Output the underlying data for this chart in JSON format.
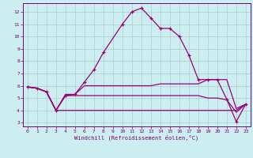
{
  "xlabel": "Windchill (Refroidissement éolien,°C)",
  "bg_color": "#cceef0",
  "grid_color": "#aacccc",
  "line_color": "#990077",
  "xlim": [
    -0.5,
    23.5
  ],
  "ylim": [
    2.7,
    12.7
  ],
  "xticks": [
    0,
    1,
    2,
    3,
    4,
    5,
    6,
    7,
    8,
    9,
    10,
    11,
    12,
    13,
    14,
    15,
    16,
    17,
    18,
    19,
    20,
    21,
    22,
    23
  ],
  "yticks": [
    3,
    4,
    5,
    6,
    7,
    8,
    9,
    10,
    11,
    12
  ],
  "series0": [
    5.9,
    5.8,
    5.5,
    4.0,
    5.2,
    5.3,
    6.3,
    7.3,
    8.7,
    null,
    11.0,
    12.0,
    12.3,
    11.5,
    10.65,
    10.65,
    10.0,
    8.5,
    6.5,
    6.5,
    6.5,
    4.9,
    3.1,
    4.5
  ],
  "series1": [
    5.9,
    5.8,
    5.5,
    4.0,
    5.3,
    5.3,
    6.0,
    6.0,
    6.0,
    6.0,
    6.0,
    6.0,
    6.0,
    6.0,
    6.15,
    6.15,
    6.15,
    6.15,
    6.15,
    6.5,
    6.5,
    6.5,
    4.15,
    4.5
  ],
  "series2": [
    5.9,
    5.8,
    5.5,
    4.0,
    5.2,
    5.2,
    5.2,
    5.2,
    5.2,
    5.2,
    5.2,
    5.2,
    5.2,
    5.2,
    5.2,
    5.2,
    5.2,
    5.2,
    5.2,
    5.0,
    5.0,
    4.85,
    3.85,
    4.5
  ],
  "series3": [
    5.9,
    5.8,
    5.5,
    4.0,
    4.0,
    4.0,
    4.0,
    4.0,
    4.0,
    4.0,
    4.0,
    4.0,
    4.0,
    4.0,
    4.0,
    4.0,
    4.0,
    4.0,
    4.0,
    4.0,
    4.0,
    4.0,
    4.0,
    4.5
  ]
}
